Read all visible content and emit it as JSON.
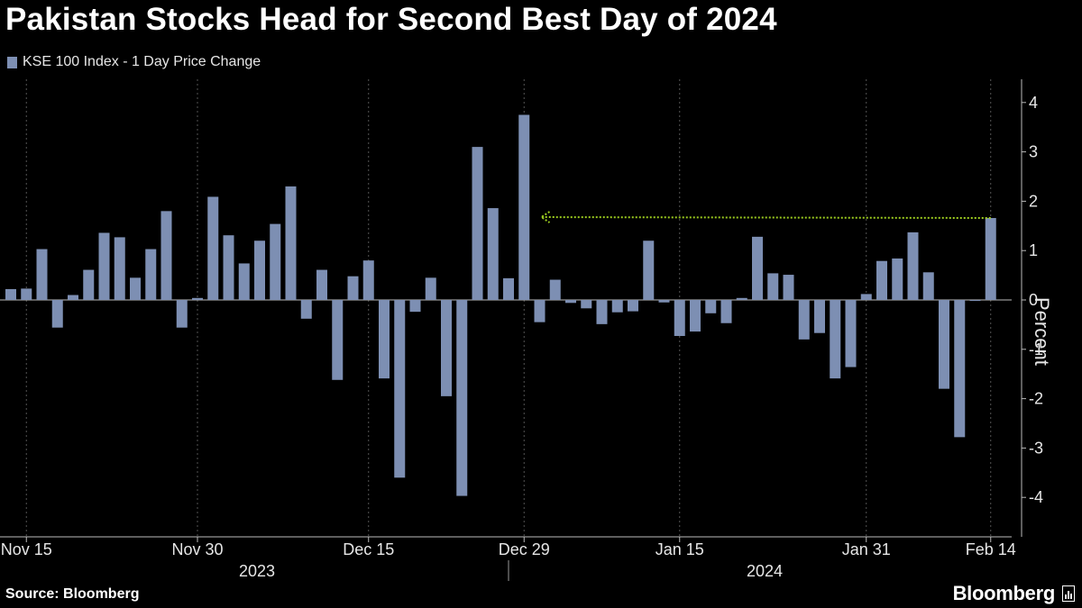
{
  "header": {
    "title": "Pakistan Stocks Head for Second Best Day of 2024"
  },
  "legend": {
    "label": "KSE 100 Index - 1 Day Price Change"
  },
  "footer": {
    "source": "Source: Bloomberg",
    "brand": "Bloomberg"
  },
  "colors": {
    "bar": "#7d8fb3",
    "annotation": "#9ccc1f",
    "grid": "#555555",
    "background": "#000000"
  },
  "chart_data": {
    "type": "bar",
    "xlabel": "",
    "ylabel": "Percent",
    "ylim": [
      -4.7,
      4.5
    ],
    "yticks": [
      4,
      3,
      2,
      1,
      0,
      -1,
      -2,
      -3,
      -4
    ],
    "grid": true,
    "legend_position": "top-left",
    "x_tick_labels": [
      "Nov 15",
      "Nov 30",
      "Dec 15",
      "Dec 29",
      "Jan 15",
      "Jan 31",
      "Feb 14"
    ],
    "x_tick_positions": [
      1,
      12,
      23,
      33,
      43,
      55,
      63
    ],
    "year_labels": [
      "2023",
      "2024"
    ],
    "series": [
      {
        "name": "KSE 100 Index - 1 Day Price Change",
        "values": [
          0.22,
          0.23,
          1.03,
          -0.56,
          0.1,
          0.61,
          1.36,
          1.27,
          0.45,
          1.03,
          1.8,
          -0.56,
          0.04,
          2.09,
          1.31,
          0.74,
          1.2,
          1.54,
          2.3,
          -0.38,
          0.61,
          -1.62,
          0.48,
          0.8,
          -1.59,
          -3.6,
          -0.24,
          0.45,
          -1.95,
          -3.97,
          3.1,
          1.86,
          0.44,
          3.75,
          -0.45,
          0.41,
          -0.06,
          -0.17,
          -0.49,
          -0.25,
          -0.23,
          1.2,
          -0.05,
          -0.73,
          -0.64,
          -0.27,
          -0.47,
          0.04,
          1.28,
          0.54,
          0.51,
          -0.8,
          -0.67,
          -1.59,
          -1.36,
          0.12,
          0.79,
          0.84,
          1.37,
          0.56,
          -1.8,
          -2.78,
          -0.02,
          1.66
        ]
      }
    ],
    "annotation": {
      "type": "arrow",
      "description_values": {
        "from_index": 63,
        "to_index": 34,
        "value": 1.66
      }
    }
  }
}
